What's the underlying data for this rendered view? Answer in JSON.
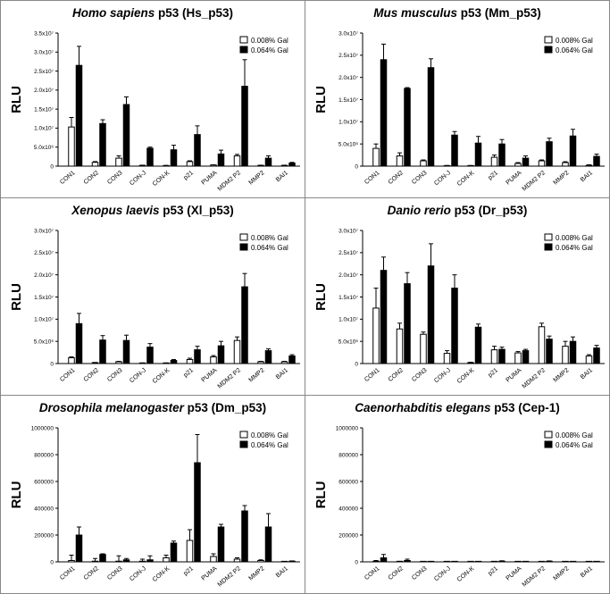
{
  "chart_data": [
    {
      "type": "bar",
      "title_italic": "Homo sapiens",
      "title_rest": " p53 (Hs_p53)",
      "ylabel": "RLU",
      "ylim": [
        0,
        35000000
      ],
      "yticks": [
        0,
        5000000,
        10000000,
        15000000,
        20000000,
        25000000,
        30000000,
        35000000
      ],
      "ytick_labels": [
        "0",
        "5.0x10⁶",
        "1.0x10⁷",
        "1.5x10⁷",
        "2.0x10⁷",
        "2.5x10⁷",
        "3.0x10⁷",
        "3.5x10⁷"
      ],
      "categories": [
        "CON1",
        "CON2",
        "CON3",
        "CON-J",
        "CON-K",
        "p21",
        "PUMA",
        "MDM2 P2",
        "MMP2",
        "BAI1"
      ],
      "series": [
        {
          "name": "0.008% Gal",
          "values": [
            10300000,
            1000000,
            2100000,
            200000,
            150000,
            1200000,
            300000,
            2700000,
            200000,
            200000
          ],
          "errors": [
            2500000,
            200000,
            600000,
            50000,
            50000,
            200000,
            50000,
            400000,
            50000,
            50000
          ]
        },
        {
          "name": "0.064% Gal",
          "values": [
            26500000,
            11200000,
            16200000,
            4700000,
            4300000,
            8300000,
            3200000,
            21000000,
            2100000,
            800000
          ],
          "errors": [
            5000000,
            1000000,
            2000000,
            300000,
            1200000,
            2300000,
            1000000,
            7000000,
            600000,
            200000
          ]
        }
      ]
    },
    {
      "type": "bar",
      "title_italic": "Mus musculus",
      "title_rest": " p53 (Mm_p53)",
      "ylabel": "RLU",
      "ylim": [
        0,
        30000000
      ],
      "yticks": [
        0,
        5000000,
        10000000,
        15000000,
        20000000,
        25000000,
        30000000
      ],
      "ytick_labels": [
        "0",
        "5.0x10⁶",
        "1.0x10⁷",
        "1.5x10⁷",
        "2.0x10⁷",
        "2.5x10⁷",
        "3.0x10⁷"
      ],
      "categories": [
        "CON1",
        "CON2",
        "CON3",
        "CON-J",
        "CON-K",
        "p21",
        "PUMA",
        "MDM2 P2",
        "MMP2",
        "BAI1"
      ],
      "series": [
        {
          "name": "0.008% Gal",
          "values": [
            4000000,
            2300000,
            1200000,
            100000,
            100000,
            2000000,
            600000,
            1200000,
            800000,
            200000
          ],
          "errors": [
            1000000,
            700000,
            200000,
            50000,
            50000,
            500000,
            200000,
            200000,
            200000,
            100000
          ]
        },
        {
          "name": "0.064% Gal",
          "values": [
            24000000,
            17500000,
            22200000,
            7000000,
            5200000,
            5000000,
            1800000,
            5500000,
            6800000,
            2200000
          ],
          "errors": [
            3500000,
            200000,
            2000000,
            800000,
            1500000,
            1000000,
            500000,
            800000,
            1500000,
            500000
          ]
        }
      ]
    },
    {
      "type": "bar",
      "title_italic": "Xenopus laevis",
      "title_rest": " p53 (Xl_p53)",
      "ylabel": "RLU",
      "ylim": [
        0,
        30000000
      ],
      "yticks": [
        0,
        5000000,
        10000000,
        15000000,
        20000000,
        25000000,
        30000000
      ],
      "ytick_labels": [
        "0",
        "5.0x10⁶",
        "1.0x10⁷",
        "1.5x10⁷",
        "2.0x10⁷",
        "2.5x10⁷",
        "3.0x10⁷"
      ],
      "categories": [
        "CON1",
        "CON2",
        "CON3",
        "CON-J",
        "CON-K",
        "p21",
        "PUMA",
        "MDM2 P2",
        "MMP2",
        "BAI1"
      ],
      "series": [
        {
          "name": "0.008% Gal",
          "values": [
            1300000,
            200000,
            400000,
            100000,
            100000,
            900000,
            1500000,
            5200000,
            400000,
            400000
          ],
          "errors": [
            200000,
            50000,
            100000,
            50000,
            50000,
            300000,
            300000,
            800000,
            100000,
            100000
          ]
        },
        {
          "name": "0.064% Gal",
          "values": [
            9000000,
            5300000,
            5200000,
            3700000,
            700000,
            3100000,
            4000000,
            17300000,
            2900000,
            1700000
          ],
          "errors": [
            2300000,
            1000000,
            1200000,
            800000,
            200000,
            800000,
            1000000,
            3000000,
            400000,
            300000
          ]
        }
      ]
    },
    {
      "type": "bar",
      "title_italic": "Danio rerio",
      "title_rest": " p53 (Dr_p53)",
      "ylabel": "RLU",
      "ylim": [
        0,
        30000000
      ],
      "yticks": [
        0,
        5000000,
        10000000,
        15000000,
        20000000,
        25000000,
        30000000
      ],
      "ytick_labels": [
        "0",
        "5.0x10⁶",
        "1.0x10⁷",
        "1.5x10⁷",
        "2.0x10⁷",
        "2.5x10⁷",
        "3.0x10⁷"
      ],
      "categories": [
        "CON1",
        "CON2",
        "CON3",
        "CON-J",
        "CON-K",
        "p21",
        "PUMA",
        "MDM2 P2",
        "MMP2",
        "BAI1"
      ],
      "series": [
        {
          "name": "0.008% Gal",
          "values": [
            12500000,
            7800000,
            6600000,
            2300000,
            200000,
            3100000,
            2400000,
            8300000,
            3900000,
            1700000
          ],
          "errors": [
            4500000,
            1300000,
            500000,
            600000,
            100000,
            800000,
            300000,
            800000,
            1100000,
            300000
          ]
        },
        {
          "name": "0.064% Gal",
          "values": [
            21000000,
            18000000,
            22000000,
            17000000,
            8200000,
            3200000,
            2900000,
            5500000,
            5000000,
            3500000
          ],
          "errors": [
            3000000,
            2500000,
            5000000,
            3000000,
            700000,
            500000,
            300000,
            700000,
            1000000,
            600000
          ]
        }
      ]
    },
    {
      "type": "bar",
      "title_italic": "Drosophila melanogaster",
      "title_rest": " p53 (Dm_p53)",
      "ylabel": "RLU",
      "ylim": [
        0,
        1000000
      ],
      "yticks": [
        0,
        200000,
        400000,
        600000,
        800000,
        1000000
      ],
      "ytick_labels": [
        "0",
        "200000",
        "400000",
        "600000",
        "800000",
        "1000000"
      ],
      "categories": [
        "CON1",
        "CON2",
        "CON3",
        "CON-J",
        "CON-K",
        "p21",
        "PUMA",
        "MDM2 P2",
        "MMP2",
        "BAI1"
      ],
      "series": [
        {
          "name": "0.008% Gal",
          "values": [
            10000,
            5000,
            5000,
            5000,
            30000,
            160000,
            40000,
            20000,
            10000,
            0
          ],
          "errors": [
            40000,
            20000,
            40000,
            15000,
            20000,
            80000,
            20000,
            10000,
            5000,
            0
          ]
        },
        {
          "name": "0.064% Gal",
          "values": [
            200000,
            55000,
            15000,
            15000,
            140000,
            740000,
            260000,
            380000,
            260000,
            5000
          ],
          "errors": [
            60000,
            5000,
            10000,
            30000,
            15000,
            210000,
            20000,
            40000,
            100000,
            2000
          ]
        }
      ]
    },
    {
      "type": "bar",
      "title_italic": "Caenorhabditis elegans",
      "title_rest": " p53 (Cep-1)",
      "ylabel": "RLU",
      "ylim": [
        0,
        1000000
      ],
      "yticks": [
        0,
        200000,
        400000,
        600000,
        800000,
        1000000
      ],
      "ytick_labels": [
        "0",
        "200000",
        "400000",
        "600000",
        "800000",
        "1000000"
      ],
      "categories": [
        "CON1",
        "CON2",
        "CON3",
        "CON-J",
        "CON-K",
        "p21",
        "PUMA",
        "MDM2 P2",
        "MMP2",
        "BAI1"
      ],
      "series": [
        {
          "name": "0.008% Gal",
          "values": [
            5000,
            2000,
            1000,
            1000,
            1000,
            2000,
            1000,
            1000,
            1000,
            1000
          ],
          "errors": [
            5000,
            2000,
            1000,
            1000,
            1000,
            1000,
            1000,
            1000,
            1000,
            1000
          ]
        },
        {
          "name": "0.064% Gal",
          "values": [
            30000,
            10000,
            2000,
            2000,
            2000,
            5000,
            2000,
            5000,
            2000,
            2000
          ],
          "errors": [
            25000,
            10000,
            1000,
            1000,
            1000,
            3000,
            1000,
            2000,
            1000,
            1000
          ]
        }
      ]
    }
  ],
  "colors": {
    "series_fill": [
      "#ffffff",
      "#000000"
    ],
    "stroke": "#000000",
    "panel_border": "#888888"
  }
}
